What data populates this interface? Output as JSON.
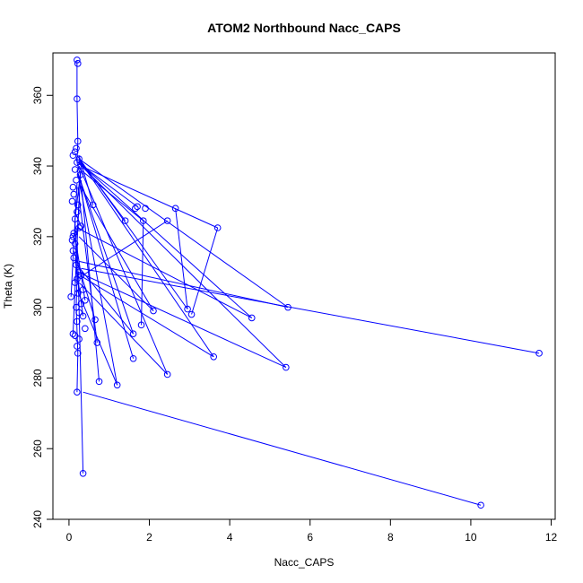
{
  "chart_data": {
    "type": "line",
    "title": "ATOM2 Northbound Nacc_CAPS",
    "xlabel": "Nacc_CAPS",
    "ylabel": "Theta (K)",
    "xlim": [
      -0.4,
      12.1
    ],
    "ylim": [
      240,
      372
    ],
    "x_ticks": [
      0,
      2,
      4,
      6,
      8,
      10,
      12
    ],
    "y_ticks": [
      240,
      260,
      280,
      300,
      320,
      340,
      360
    ],
    "grid": false,
    "legend": "none",
    "series_color": "#0000ff",
    "series": [
      {
        "marker": "open-circle",
        "points": [
          [
            0.2,
            370.0
          ],
          [
            0.22,
            369.0
          ],
          [
            0.2,
            359.0
          ],
          [
            0.22,
            347.0
          ],
          [
            0.18,
            345.0
          ],
          [
            0.15,
            344.0
          ],
          [
            0.1,
            343.0
          ],
          [
            0.25,
            342.0
          ],
          [
            0.2,
            341.0
          ],
          [
            0.3,
            340.0
          ],
          [
            0.15,
            339.0
          ],
          [
            0.28,
            337.5
          ],
          [
            0.18,
            336.0
          ],
          [
            0.1,
            334.0
          ],
          [
            0.12,
            332.0
          ],
          [
            0.08,
            330.0
          ],
          [
            0.22,
            329.0
          ],
          [
            0.6,
            329.0
          ],
          [
            1.7,
            328.5
          ],
          [
            1.65,
            328.0
          ],
          [
            1.9,
            328.0
          ],
          [
            2.65,
            328.0
          ],
          [
            0.2,
            327.0
          ],
          [
            0.15,
            325.0
          ],
          [
            1.4,
            324.5
          ],
          [
            1.85,
            324.5
          ],
          [
            2.45,
            324.5
          ],
          [
            0.3,
            323.0
          ],
          [
            0.25,
            322.5
          ],
          [
            3.7,
            322.5
          ],
          [
            0.12,
            321.0
          ],
          [
            0.1,
            320.0
          ],
          [
            0.08,
            319.0
          ],
          [
            0.15,
            318.0
          ],
          [
            0.1,
            316.0
          ],
          [
            0.12,
            314.0
          ],
          [
            0.18,
            312.0
          ],
          [
            0.25,
            310.0
          ],
          [
            0.3,
            309.0
          ],
          [
            0.2,
            308.0
          ],
          [
            0.15,
            307.0
          ],
          [
            0.35,
            305.0
          ],
          [
            0.22,
            304.0
          ],
          [
            0.05,
            303.0
          ],
          [
            0.4,
            302.0
          ],
          [
            0.3,
            301.0
          ],
          [
            0.18,
            300.0
          ],
          [
            5.45,
            300.0
          ],
          [
            2.95,
            299.5
          ],
          [
            2.1,
            299.0
          ],
          [
            0.25,
            298.5
          ],
          [
            3.05,
            298.0
          ],
          [
            0.35,
            297.5
          ],
          [
            4.55,
            297.0
          ],
          [
            0.65,
            296.5
          ],
          [
            0.2,
            296.0
          ],
          [
            1.8,
            295.0
          ],
          [
            0.4,
            294.0
          ],
          [
            0.1,
            292.5
          ],
          [
            0.15,
            292.0
          ],
          [
            1.6,
            292.5
          ],
          [
            0.25,
            291.0
          ],
          [
            0.7,
            290.0
          ],
          [
            0.2,
            289.0
          ],
          [
            0.22,
            287.0
          ],
          [
            11.7,
            287.0
          ],
          [
            3.6,
            286.0
          ],
          [
            1.6,
            285.5
          ],
          [
            5.4,
            283.0
          ],
          [
            2.45,
            281.0
          ],
          [
            0.75,
            279.0
          ],
          [
            1.2,
            278.0
          ],
          [
            0.2,
            276.0
          ],
          [
            0.35,
            253.0
          ],
          [
            10.25,
            244.0
          ]
        ],
        "segments": [
          [
            [
              0.2,
              370.0
            ],
            [
              0.2,
              359.0
            ]
          ],
          [
            [
              0.2,
              359.0
            ],
            [
              0.22,
              347.0
            ]
          ],
          [
            [
              0.22,
              347.0
            ],
            [
              0.2,
              341.0
            ]
          ],
          [
            [
              0.2,
              341.0
            ],
            [
              0.28,
              337.5
            ]
          ],
          [
            [
              0.28,
              337.5
            ],
            [
              0.15,
              325.0
            ]
          ],
          [
            [
              0.15,
              325.0
            ],
            [
              0.2,
              308.0
            ]
          ],
          [
            [
              0.2,
              308.0
            ],
            [
              0.18,
              300.0
            ]
          ],
          [
            [
              0.18,
              300.0
            ],
            [
              0.22,
              287.0
            ]
          ],
          [
            [
              0.22,
              287.0
            ],
            [
              0.2,
              276.0
            ]
          ],
          [
            [
              0.3,
              340.0
            ],
            [
              0.2,
              320.0
            ]
          ],
          [
            [
              0.2,
              320.0
            ],
            [
              0.25,
              300.0
            ]
          ],
          [
            [
              0.25,
              300.0
            ],
            [
              0.35,
              253.0
            ]
          ],
          [
            [
              0.25,
              342.0
            ],
            [
              5.45,
              300.0
            ]
          ],
          [
            [
              0.22,
              341.0
            ],
            [
              5.4,
              283.0
            ]
          ],
          [
            [
              0.25,
              341.0
            ],
            [
              4.55,
              297.0
            ]
          ],
          [
            [
              0.2,
              343.0
            ],
            [
              2.95,
              299.5
            ]
          ],
          [
            [
              0.3,
              341.0
            ],
            [
              3.6,
              286.0
            ]
          ],
          [
            [
              0.25,
              340.0
            ],
            [
              2.45,
              281.0
            ]
          ],
          [
            [
              0.2,
              339.0
            ],
            [
              1.6,
              285.5
            ]
          ],
          [
            [
              0.22,
              338.0
            ],
            [
              1.2,
              278.0
            ]
          ],
          [
            [
              0.25,
              337.0
            ],
            [
              1.6,
              292.5
            ]
          ],
          [
            [
              0.3,
              336.0
            ],
            [
              0.75,
              279.0
            ]
          ],
          [
            [
              0.25,
              335.0
            ],
            [
              2.1,
              299.0
            ]
          ],
          [
            [
              0.22,
              334.0
            ],
            [
              0.7,
              290.0
            ]
          ],
          [
            [
              0.25,
              342.0
            ],
            [
              1.4,
              324.5
            ]
          ],
          [
            [
              0.22,
              341.0
            ],
            [
              1.7,
              328.5
            ]
          ],
          [
            [
              0.3,
              340.0
            ],
            [
              3.7,
              322.5
            ]
          ],
          [
            [
              0.25,
              343.0
            ],
            [
              0.6,
              329.0
            ]
          ],
          [
            [
              0.28,
              339.0
            ],
            [
              1.85,
              324.5
            ]
          ],
          [
            [
              1.85,
              324.5
            ],
            [
              1.8,
              295.0
            ]
          ],
          [
            [
              2.65,
              328.0
            ],
            [
              2.95,
              299.5
            ]
          ],
          [
            [
              3.7,
              322.5
            ],
            [
              3.05,
              298.0
            ]
          ],
          [
            [
              0.2,
              308.0
            ],
            [
              2.45,
              324.5
            ]
          ],
          [
            [
              0.25,
              313.0
            ],
            [
              5.45,
              300.0
            ]
          ],
          [
            [
              0.3,
              311.0
            ],
            [
              11.7,
              287.0
            ]
          ],
          [
            [
              0.22,
              310.0
            ],
            [
              5.4,
              283.0
            ]
          ],
          [
            [
              0.28,
              309.0
            ],
            [
              3.6,
              286.0
            ]
          ],
          [
            [
              0.25,
              307.0
            ],
            [
              2.45,
              281.0
            ]
          ],
          [
            [
              0.2,
              305.0
            ],
            [
              1.2,
              278.0
            ]
          ],
          [
            [
              0.35,
              276.0
            ],
            [
              10.25,
              244.0
            ]
          ],
          [
            [
              0.15,
              327.0
            ],
            [
              0.3,
              323.0
            ]
          ],
          [
            [
              0.1,
              320.0
            ],
            [
              0.25,
              322.5
            ]
          ],
          [
            [
              0.18,
              318.0
            ],
            [
              0.4,
              302.0
            ]
          ],
          [
            [
              0.12,
              316.0
            ],
            [
              0.65,
              296.5
            ]
          ],
          [
            [
              0.15,
              314.0
            ],
            [
              0.35,
              297.5
            ]
          ],
          [
            [
              0.2,
              312.0
            ],
            [
              1.6,
              292.5
            ]
          ],
          [
            [
              0.1,
              292.5
            ],
            [
              0.25,
              330.0
            ]
          ],
          [
            [
              0.05,
              303.0
            ],
            [
              0.2,
              335.0
            ]
          ],
          [
            [
              0.2,
              322.5
            ],
            [
              4.55,
              297.0
            ]
          ],
          [
            [
              0.25,
              320.0
            ],
            [
              2.1,
              299.0
            ]
          ]
        ]
      }
    ]
  }
}
